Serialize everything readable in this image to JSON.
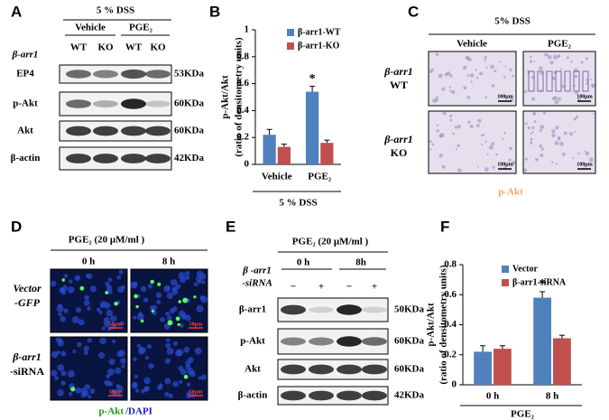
{
  "panels": {
    "A": {
      "label": "A",
      "title": "5 % DSS",
      "groups": [
        "Vehicle",
        "PGE₂"
      ],
      "genotype_label": "β-arr1",
      "lanes": [
        "WT",
        "KO",
        "WT",
        "KO"
      ],
      "rows": [
        "EP4",
        "p-Akt",
        "Akt",
        "β-actin"
      ],
      "sizes": [
        "53KDa",
        "60KDa",
        "60KDa",
        "42KDa"
      ]
    },
    "B": {
      "label": "B"
    },
    "C": {
      "label": "C",
      "title": "5% DSS",
      "columns": [
        "Vehicle",
        "PGE₂"
      ],
      "rows": [
        [
          "β-arr1",
          "WT"
        ],
        [
          "β-arr1",
          "KO"
        ]
      ],
      "scale_bars": [
        "100μm",
        "100μm",
        "100μm",
        "100μm"
      ],
      "caption": "p-Akt"
    },
    "D": {
      "label": "D",
      "title": "PGE₂ (20 μM/ml )",
      "columns": [
        "0 h",
        "8 h"
      ],
      "rows": [
        [
          "Vector",
          "-GFP"
        ],
        [
          "β-arr1",
          "-siRNA"
        ]
      ],
      "scale_bars": [
        "50μm",
        "50μm",
        "50μm",
        "50μm"
      ],
      "caption": [
        "p-Akt",
        "/DAPI"
      ]
    },
    "E": {
      "label": "E",
      "title": "PGE₂ (20 μM/ml )",
      "columns": [
        "0 h",
        "8h"
      ],
      "treatment_label": [
        "β -arr1",
        "-siRNA"
      ],
      "signs": [
        "−",
        "+",
        "−",
        "+"
      ],
      "rows": [
        "β-arr1",
        "p-Akt",
        "Akt",
        "β-actin"
      ],
      "sizes": [
        "50KDa",
        "60KDa",
        "60KDa",
        "42KDa"
      ]
    },
    "F": {
      "label": "F"
    }
  },
  "chart_data": [
    {
      "type": "bar",
      "ylabel": [
        "p-Akt/Akt",
        "(ratio of densitometry units)"
      ],
      "categories": [
        "Vehicle",
        "PGE₂"
      ],
      "group_label": "5 % DSS",
      "annotation": "*",
      "series": [
        {
          "name": "β-arr1-WT",
          "color": "#4f81bd",
          "values": [
            0.22,
            0.54
          ],
          "errors": [
            0.04,
            0.04
          ]
        },
        {
          "name": "β-arr1-KO",
          "color": "#c0504d",
          "values": [
            0.13,
            0.16
          ],
          "errors": [
            0.02,
            0.02
          ]
        }
      ],
      "ylim": [
        0,
        1
      ],
      "yticks": [
        0,
        0.2,
        0.4,
        0.6,
        0.8,
        1
      ]
    },
    {
      "type": "bar",
      "ylabel": [
        "p-Akt/Akt",
        "(ratio of densitometry units)"
      ],
      "categories": [
        "0 h",
        "8 h"
      ],
      "group_label": "PGE₂",
      "annotation": "*",
      "series": [
        {
          "name": "Vector",
          "color": "#4f81bd",
          "values": [
            0.22,
            0.58
          ],
          "errors": [
            0.04,
            0.04
          ]
        },
        {
          "name": "β-arr1-siRNA",
          "color": "#c0504d",
          "values": [
            0.24,
            0.31
          ],
          "errors": [
            0.02,
            0.02
          ]
        }
      ],
      "ylim": [
        0,
        0.8
      ],
      "yticks": [
        0,
        0.2,
        0.4,
        0.6,
        0.8
      ]
    }
  ]
}
